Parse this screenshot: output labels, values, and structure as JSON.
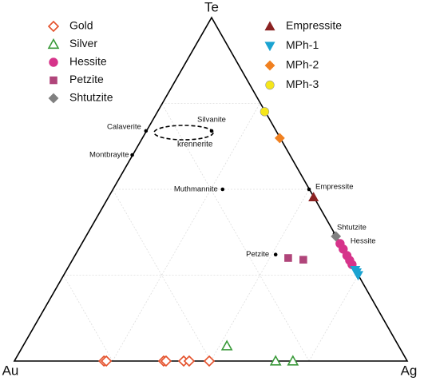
{
  "chart_data": {
    "type": "ternary",
    "axes": {
      "top": "Te",
      "left": "Au",
      "right": "Ag"
    },
    "lim": [
      0,
      100
    ],
    "ticks": [
      25,
      50,
      75
    ],
    "grid": true,
    "series": [
      {
        "name": "Gold",
        "marker": "diamond-open",
        "color": "#e4502a",
        "te": [
          0,
          0,
          0,
          0,
          0,
          0,
          0
        ],
        "ag": [
          22.8,
          23.4,
          38.0,
          38.6,
          43.1,
          44.5,
          49.6
        ]
      },
      {
        "name": "Silver",
        "marker": "triangle-open",
        "color": "#3a9a3a",
        "te": [
          4.4,
          0,
          0
        ],
        "ag": [
          51.9,
          66.5,
          70.9
        ]
      },
      {
        "name": "Hessite",
        "marker": "circle",
        "color": "#d6338a",
        "te": [
          34.2,
          32.6,
          30.7,
          29.3,
          28.1
        ],
        "ag": [
          65.8,
          67.4,
          69.3,
          70.7,
          71.9
        ]
      },
      {
        "name": "Petzite",
        "marker": "square",
        "color": "#b0457a",
        "te": [
          30.0,
          29.5
        ],
        "ag": [
          54.7,
          58.8
        ]
      },
      {
        "name": "Shtutzite",
        "marker": "diamond",
        "color": "#808080",
        "te": [
          36.3
        ],
        "ag": [
          63.7
        ]
      },
      {
        "name": "Empressite",
        "marker": "triangle",
        "color": "#8b2222",
        "te": [
          47.7
        ],
        "ag": [
          52.3
        ]
      },
      {
        "name": "MPh-1",
        "marker": "triangle-down",
        "color": "#1aa3d1",
        "te": [
          26.5,
          25.8,
          25.0
        ],
        "ag": [
          73.5,
          74.2,
          75.0
        ]
      },
      {
        "name": "MPh-2",
        "marker": "diamond",
        "color": "#f08020",
        "te": [
          64.9
        ],
        "ag": [
          35.1
        ]
      },
      {
        "name": "MPh-3",
        "marker": "circle",
        "color": "#f5e61a",
        "te": [
          72.6
        ],
        "ag": [
          27.4
        ]
      }
    ],
    "references": [
      {
        "label": "Calaverite",
        "te": 67,
        "ag": 0
      },
      {
        "label": "Montbrayite",
        "te": 60,
        "ag": 0
      },
      {
        "label": "Silvanite",
        "te": 67,
        "ag": 16.7
      },
      {
        "label": "Muthmannite",
        "te": 50,
        "ag": 28
      },
      {
        "label": "Empressite",
        "te": 50,
        "ag": 50
      },
      {
        "label": "Shtutzite",
        "te": 37,
        "ag": 63
      },
      {
        "label": "Hessite",
        "te": 33,
        "ag": 67
      },
      {
        "label": "Petzite",
        "te": 31,
        "ag": 51
      }
    ],
    "annotations": [
      "krennerite"
    ]
  }
}
